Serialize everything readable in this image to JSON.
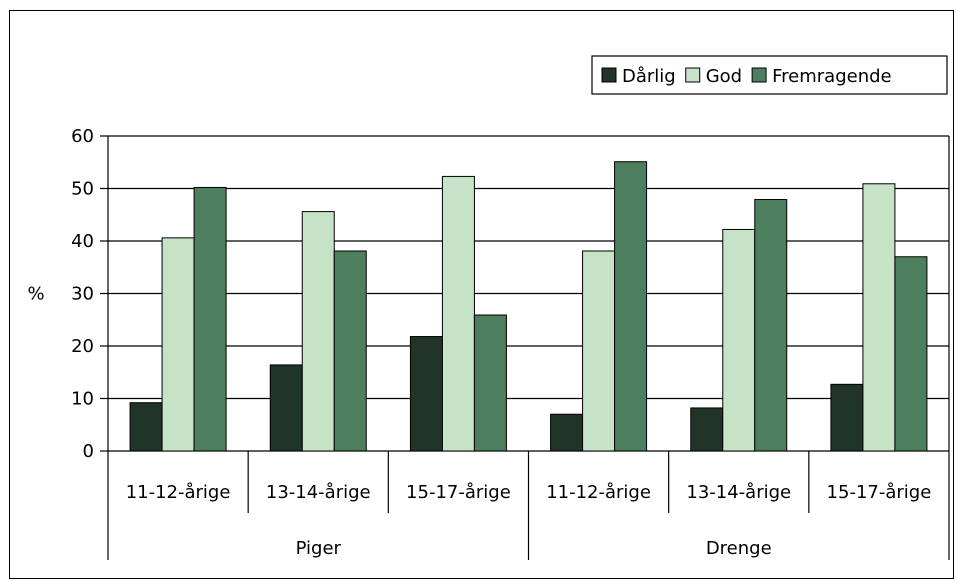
{
  "chart_data": {
    "type": "bar",
    "ylabel": "%",
    "ylim": [
      0,
      60
    ],
    "yticks": [
      0,
      10,
      20,
      30,
      40,
      50,
      60
    ],
    "grid": true,
    "legend_position": "top-right",
    "categories": [
      "11-12-årige",
      "13-14-årige",
      "15-17-årige",
      "11-12-årige",
      "13-14-årige",
      "15-17-årige"
    ],
    "groups": [
      {
        "label": "Piger",
        "span": 3
      },
      {
        "label": "Drenge",
        "span": 3
      }
    ],
    "series": [
      {
        "name": "Dårlig",
        "color": "#203527",
        "values": [
          9.2,
          16.4,
          21.8,
          7,
          8.2,
          12.7
        ]
      },
      {
        "name": "God",
        "color": "#c6e3c8",
        "values": [
          40.6,
          45.6,
          52.3,
          38.1,
          42.2,
          50.9
        ]
      },
      {
        "name": "Fremragende",
        "color": "#4d7f5e",
        "values": [
          50.2,
          38.1,
          25.9,
          55.1,
          47.9,
          37
        ]
      }
    ]
  }
}
